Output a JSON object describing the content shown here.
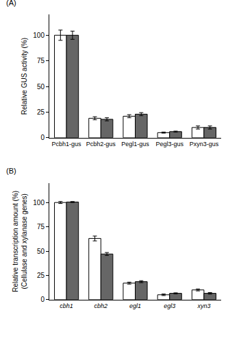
{
  "chart_data": [
    {
      "type": "bar",
      "title": "(A)",
      "categories": [
        "Pcbh1-gus",
        "Pcbh2-gus",
        "Pegl1-gus",
        "Pegl3-gus",
        "Pxyn3-gus"
      ],
      "y_label": "Relative GUS activity (%)",
      "series": [
        {
          "color": "#ffffff",
          "values": [
            100,
            19,
            21,
            5,
            10
          ],
          "errors": [
            5,
            1.5,
            1.5,
            0.5,
            1.5
          ]
        },
        {
          "color": "#666666",
          "values": [
            100,
            18,
            23,
            6,
            10
          ],
          "errors": [
            4,
            1.5,
            1.5,
            0.5,
            1.5
          ]
        }
      ],
      "ylim": [
        0,
        120
      ],
      "yticks": [
        0,
        25,
        50,
        75,
        100
      ],
      "grid": false
    },
    {
      "type": "bar",
      "title": "(B)",
      "categories": [
        "cbh1",
        "cbh2",
        "egl1",
        "egl3",
        "xyn3"
      ],
      "y_label": "Relative transcription amount (%)\n(Cellulase and xylanase genes)",
      "series": [
        {
          "color": "#ffffff",
          "values": [
            100,
            63,
            17,
            5,
            10
          ],
          "errors": [
            1,
            2.5,
            1,
            0.8,
            1
          ]
        },
        {
          "color": "#666666",
          "values": [
            100.5,
            47,
            18.5,
            6.5,
            6.5
          ],
          "errors": [
            0.5,
            1.5,
            1,
            0.5,
            0.8
          ]
        }
      ],
      "ylim": [
        0,
        120
      ],
      "yticks": [
        0,
        25,
        50,
        75,
        100
      ],
      "grid": false
    }
  ]
}
